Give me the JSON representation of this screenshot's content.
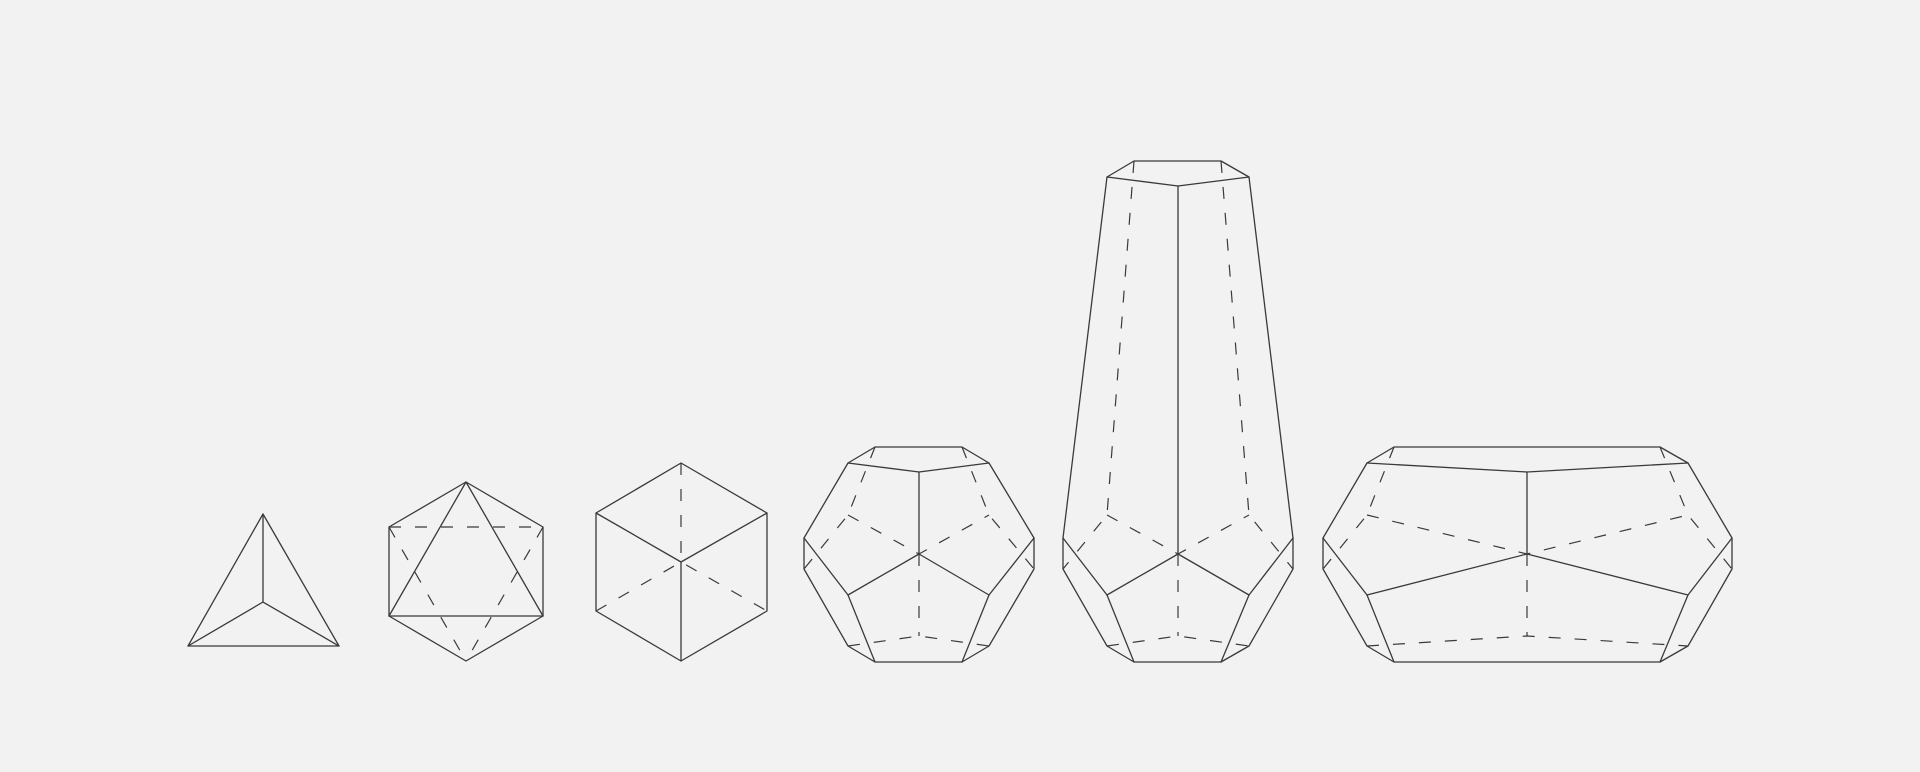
{
  "figure": {
    "description_kind": "polyhedra-line-drawings",
    "solids": [
      {
        "name": "tetrahedron"
      },
      {
        "name": "octahedron"
      },
      {
        "name": "cube"
      },
      {
        "name": "dodecahedron"
      },
      {
        "name": "stretched-dodecahedron-vertical"
      },
      {
        "name": "stretched-dodecahedron-horizontal"
      }
    ],
    "colors": {
      "background": "#f2f2f2",
      "stroke": "#3a3a3a"
    }
  }
}
